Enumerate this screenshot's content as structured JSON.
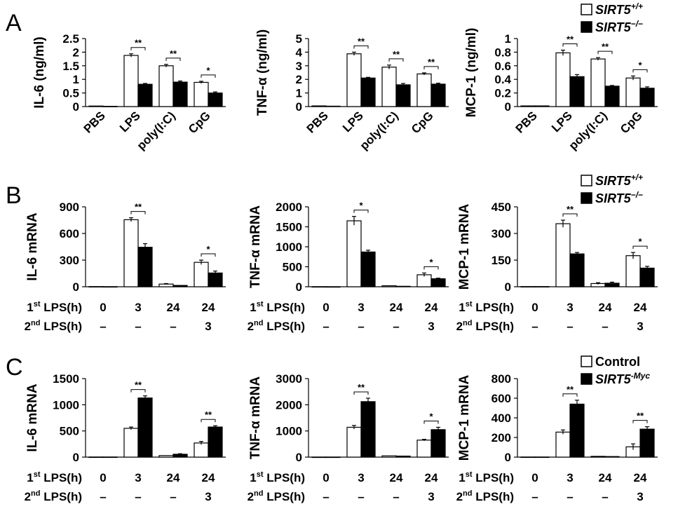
{
  "colors": {
    "wt": "#ffffff",
    "ko": "#000000",
    "stroke": "#000000"
  },
  "legend_A": [
    "SIRT5+/+",
    "SIRT5−/−"
  ],
  "legend_B": [
    "SIRT5+/+",
    "SIRT5−/−"
  ],
  "legend_C": [
    "Control",
    "SIRT5-Myc"
  ],
  "panels": [
    "A",
    "B",
    "C"
  ],
  "row_labels": {
    "first": "1st LPS(h)",
    "second": "2nd LPS(h)",
    "first_values": [
      "0",
      "3",
      "24",
      "24"
    ],
    "second_values": [
      "–",
      "–",
      "–",
      "3"
    ]
  },
  "chart_data": [
    {
      "id": "A-IL6",
      "type": "bar",
      "panel": "A",
      "ylabel": "IL-6 (ng/ml)",
      "categories": [
        "PBS",
        "LPS",
        "poly(I:C)",
        "CpG"
      ],
      "yticks": [
        "0",
        "0.5",
        "1",
        "1.5",
        "2",
        "2.5"
      ],
      "ylim": [
        0,
        2.5
      ],
      "series": [
        {
          "name": "SIRT5+/+",
          "values": [
            0.02,
            1.88,
            1.5,
            0.89
          ],
          "errors": [
            0.01,
            0.06,
            0.05,
            0.04
          ]
        },
        {
          "name": "SIRT5−/−",
          "values": [
            0.01,
            0.82,
            0.9,
            0.5
          ],
          "errors": [
            0.01,
            0.03,
            0.04,
            0.04
          ]
        }
      ],
      "significance": [
        "",
        "**",
        "**",
        "*"
      ]
    },
    {
      "id": "A-TNF",
      "type": "bar",
      "panel": "A",
      "ylabel": "TNF-α (ng/ml)",
      "categories": [
        "PBS",
        "LPS",
        "poly(I:C)",
        "CpG"
      ],
      "yticks": [
        "0",
        "1",
        "2",
        "3",
        "4",
        "5"
      ],
      "ylim": [
        0,
        5
      ],
      "series": [
        {
          "name": "SIRT5+/+",
          "values": [
            0.05,
            3.88,
            2.9,
            2.4
          ],
          "errors": [
            0.02,
            0.12,
            0.15,
            0.08
          ]
        },
        {
          "name": "SIRT5−/−",
          "values": [
            0.03,
            2.1,
            1.6,
            1.65
          ],
          "errors": [
            0.02,
            0.05,
            0.1,
            0.07
          ]
        }
      ],
      "significance": [
        "",
        "**",
        "**",
        "**"
      ]
    },
    {
      "id": "A-MCP1",
      "type": "bar",
      "panel": "A",
      "ylabel": "MCP-1 (ng/ml)",
      "categories": [
        "PBS",
        "LPS",
        "poly(I:C)",
        "CpG"
      ],
      "yticks": [
        "0",
        "0.2",
        "0.4",
        "0.6",
        "0.8",
        "1"
      ],
      "ylim": [
        0,
        1
      ],
      "series": [
        {
          "name": "SIRT5+/+",
          "values": [
            0.01,
            0.79,
            0.7,
            0.42
          ],
          "errors": [
            0.005,
            0.04,
            0.02,
            0.03
          ]
        },
        {
          "name": "SIRT5−/−",
          "values": [
            0.01,
            0.44,
            0.3,
            0.27
          ],
          "errors": [
            0.005,
            0.03,
            0.01,
            0.02
          ]
        }
      ],
      "significance": [
        "",
        "**",
        "**",
        "*"
      ]
    },
    {
      "id": "B-IL6",
      "type": "bar",
      "panel": "B",
      "ylabel": "IL-6 mRNA",
      "categories": [
        "0",
        "3",
        "24",
        "24"
      ],
      "yticks": [
        "0",
        "300",
        "600",
        "900"
      ],
      "ylim": [
        0,
        900
      ],
      "series": [
        {
          "name": "SIRT5+/+",
          "values": [
            2,
            755,
            30,
            275
          ],
          "errors": [
            1,
            22,
            6,
            25
          ]
        },
        {
          "name": "SIRT5−/−",
          "values": [
            1,
            445,
            15,
            155
          ],
          "errors": [
            1,
            40,
            4,
            22
          ]
        }
      ],
      "significance": [
        "",
        "**",
        "",
        "*"
      ]
    },
    {
      "id": "B-TNF",
      "type": "bar",
      "panel": "B",
      "ylabel": "TNF-α mRNA",
      "categories": [
        "0",
        "3",
        "24",
        "24"
      ],
      "yticks": [
        "0",
        "500",
        "1000",
        "1500",
        "2000"
      ],
      "ylim": [
        0,
        2000
      ],
      "series": [
        {
          "name": "SIRT5+/+",
          "values": [
            2,
            1650,
            25,
            300
          ],
          "errors": [
            1,
            110,
            5,
            45
          ]
        },
        {
          "name": "SIRT5−/−",
          "values": [
            1,
            870,
            12,
            200
          ],
          "errors": [
            1,
            45,
            4,
            15
          ]
        }
      ],
      "significance": [
        "",
        "*",
        "",
        "*"
      ]
    },
    {
      "id": "B-MCP1",
      "type": "bar",
      "panel": "B",
      "ylabel": "MCP-1 mRNA",
      "categories": [
        "0",
        "3",
        "24",
        "24"
      ],
      "yticks": [
        "0",
        "150",
        "300",
        "450"
      ],
      "ylim": [
        0,
        450
      ],
      "series": [
        {
          "name": "SIRT5+/+",
          "values": [
            1,
            355,
            18,
            175
          ],
          "errors": [
            1,
            20,
            5,
            18
          ]
        },
        {
          "name": "SIRT5−/−",
          "values": [
            1,
            185,
            20,
            105
          ],
          "errors": [
            1,
            8,
            6,
            10
          ]
        }
      ],
      "significance": [
        "",
        "**",
        "",
        "*"
      ]
    },
    {
      "id": "C-IL6",
      "type": "bar",
      "panel": "C",
      "ylabel": "IL-6 mRNA",
      "categories": [
        "0",
        "3",
        "24",
        "24"
      ],
      "yticks": [
        "0",
        "500",
        "1000",
        "1500"
      ],
      "ylim": [
        0,
        1500
      ],
      "series": [
        {
          "name": "Control",
          "values": [
            2,
            550,
            30,
            270
          ],
          "errors": [
            1,
            25,
            6,
            30
          ]
        },
        {
          "name": "SIRT5-Myc",
          "values": [
            2,
            1130,
            55,
            575
          ],
          "errors": [
            1,
            40,
            10,
            25
          ]
        }
      ],
      "significance": [
        "",
        "**",
        "",
        "**"
      ]
    },
    {
      "id": "C-TNF",
      "type": "bar",
      "panel": "C",
      "ylabel": "TNF-α mRNA",
      "categories": [
        "0",
        "3",
        "24",
        "24"
      ],
      "yticks": [
        "0",
        "1000",
        "2000",
        "3000"
      ],
      "ylim": [
        0,
        3000
      ],
      "series": [
        {
          "name": "Control",
          "values": [
            2,
            1140,
            50,
            650
          ],
          "errors": [
            1,
            70,
            10,
            30
          ]
        },
        {
          "name": "SIRT5-Myc",
          "values": [
            2,
            2120,
            40,
            1050
          ],
          "errors": [
            1,
            130,
            8,
            90
          ]
        }
      ],
      "significance": [
        "",
        "**",
        "",
        "*"
      ]
    },
    {
      "id": "C-MCP1",
      "type": "bar",
      "panel": "C",
      "ylabel": "MCP-1 mRNA",
      "categories": [
        "0",
        "3",
        "24",
        "24"
      ],
      "yticks": [
        "0",
        "200",
        "400",
        "600",
        "800"
      ],
      "ylim": [
        0,
        800
      ],
      "series": [
        {
          "name": "Control",
          "values": [
            1,
            255,
            8,
            105
          ],
          "errors": [
            1,
            22,
            3,
            30
          ]
        },
        {
          "name": "SIRT5-Myc",
          "values": [
            1,
            540,
            6,
            285
          ],
          "errors": [
            1,
            40,
            3,
            25
          ]
        }
      ],
      "significance": [
        "",
        "**",
        "",
        "**"
      ]
    }
  ]
}
